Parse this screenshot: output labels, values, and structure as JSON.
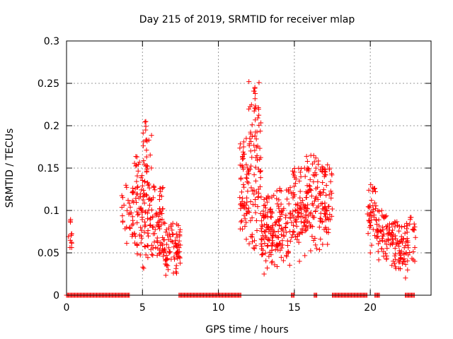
{
  "chart_data": {
    "type": "scatter",
    "title": "Day 215 of 2019, SRMTID for receiver mlap",
    "xlabel": "GPS time / hours",
    "ylabel": "SRMTID / TECUs",
    "xlim": [
      0,
      24
    ],
    "ylim": [
      0,
      0.3
    ],
    "x_ticks": [
      0,
      5,
      10,
      15,
      20
    ],
    "x_tick_labels": [
      "0",
      "5",
      "10",
      "15",
      "20"
    ],
    "y_ticks": [
      0,
      0.05,
      0.1,
      0.15,
      0.2,
      0.25,
      0.3
    ],
    "y_tick_labels": [
      "0",
      "0.05",
      "0.1",
      "0.15",
      "0.2",
      "0.25",
      "0.3"
    ],
    "grid": true,
    "marker": "+",
    "series": [
      {
        "name": "SRMTID",
        "color": "#ff0000",
        "clusters": [
          {
            "x_range": [
              0.1,
              0.4
            ],
            "y_range": [
              0.04,
              0.095
            ],
            "count": 12
          },
          {
            "x_range": [
              3.6,
              4.4
            ],
            "y_range": [
              0.045,
              0.13
            ],
            "count": 25
          },
          {
            "x_range": [
              4.3,
              5.0
            ],
            "y_range": [
              0.04,
              0.165
            ],
            "count": 60
          },
          {
            "x_range": [
              5.0,
              5.6
            ],
            "y_range": [
              0.03,
              0.205
            ],
            "count": 70
          },
          {
            "x_range": [
              5.6,
              6.4
            ],
            "y_range": [
              0.04,
              0.13
            ],
            "count": 70
          },
          {
            "x_range": [
              6.4,
              7.5
            ],
            "y_range": [
              0.022,
              0.085
            ],
            "count": 80
          },
          {
            "x_range": [
              11.4,
              12.0
            ],
            "y_range": [
              0.05,
              0.185
            ],
            "count": 60
          },
          {
            "x_range": [
              12.0,
              12.8
            ],
            "y_range": [
              0.03,
              0.252
            ],
            "count": 90
          },
          {
            "x_range": [
              12.8,
              13.6
            ],
            "y_range": [
              0.025,
              0.12
            ],
            "count": 90
          },
          {
            "x_range": [
              13.6,
              14.8
            ],
            "y_range": [
              0.028,
              0.13
            ],
            "count": 90
          },
          {
            "x_range": [
              14.8,
              15.8
            ],
            "y_range": [
              0.04,
              0.15
            ],
            "count": 90
          },
          {
            "x_range": [
              15.8,
              16.8
            ],
            "y_range": [
              0.05,
              0.165
            ],
            "count": 80
          },
          {
            "x_range": [
              16.8,
              17.5
            ],
            "y_range": [
              0.06,
              0.16
            ],
            "count": 60
          },
          {
            "x_range": [
              19.8,
              20.4
            ],
            "y_range": [
              0.05,
              0.135
            ],
            "count": 40
          },
          {
            "x_range": [
              20.4,
              21.3
            ],
            "y_range": [
              0.04,
              0.1
            ],
            "count": 60
          },
          {
            "x_range": [
              21.3,
              22.0
            ],
            "y_range": [
              0.025,
              0.09
            ],
            "count": 50
          },
          {
            "x_range": [
              22.0,
              22.6
            ],
            "y_range": [
              0.018,
              0.09
            ],
            "count": 40
          },
          {
            "x_range": [
              22.6,
              23.0
            ],
            "y_range": [
              0.04,
              0.1
            ],
            "count": 15
          }
        ],
        "zero_ranges": [
          [
            0,
            4.2
          ],
          [
            7.4,
            11.5
          ],
          [
            14.8,
            15.0
          ],
          [
            16.3,
            16.5
          ],
          [
            17.5,
            19.8
          ],
          [
            20.3,
            20.6
          ],
          [
            22.3,
            22.9
          ]
        ]
      }
    ]
  }
}
